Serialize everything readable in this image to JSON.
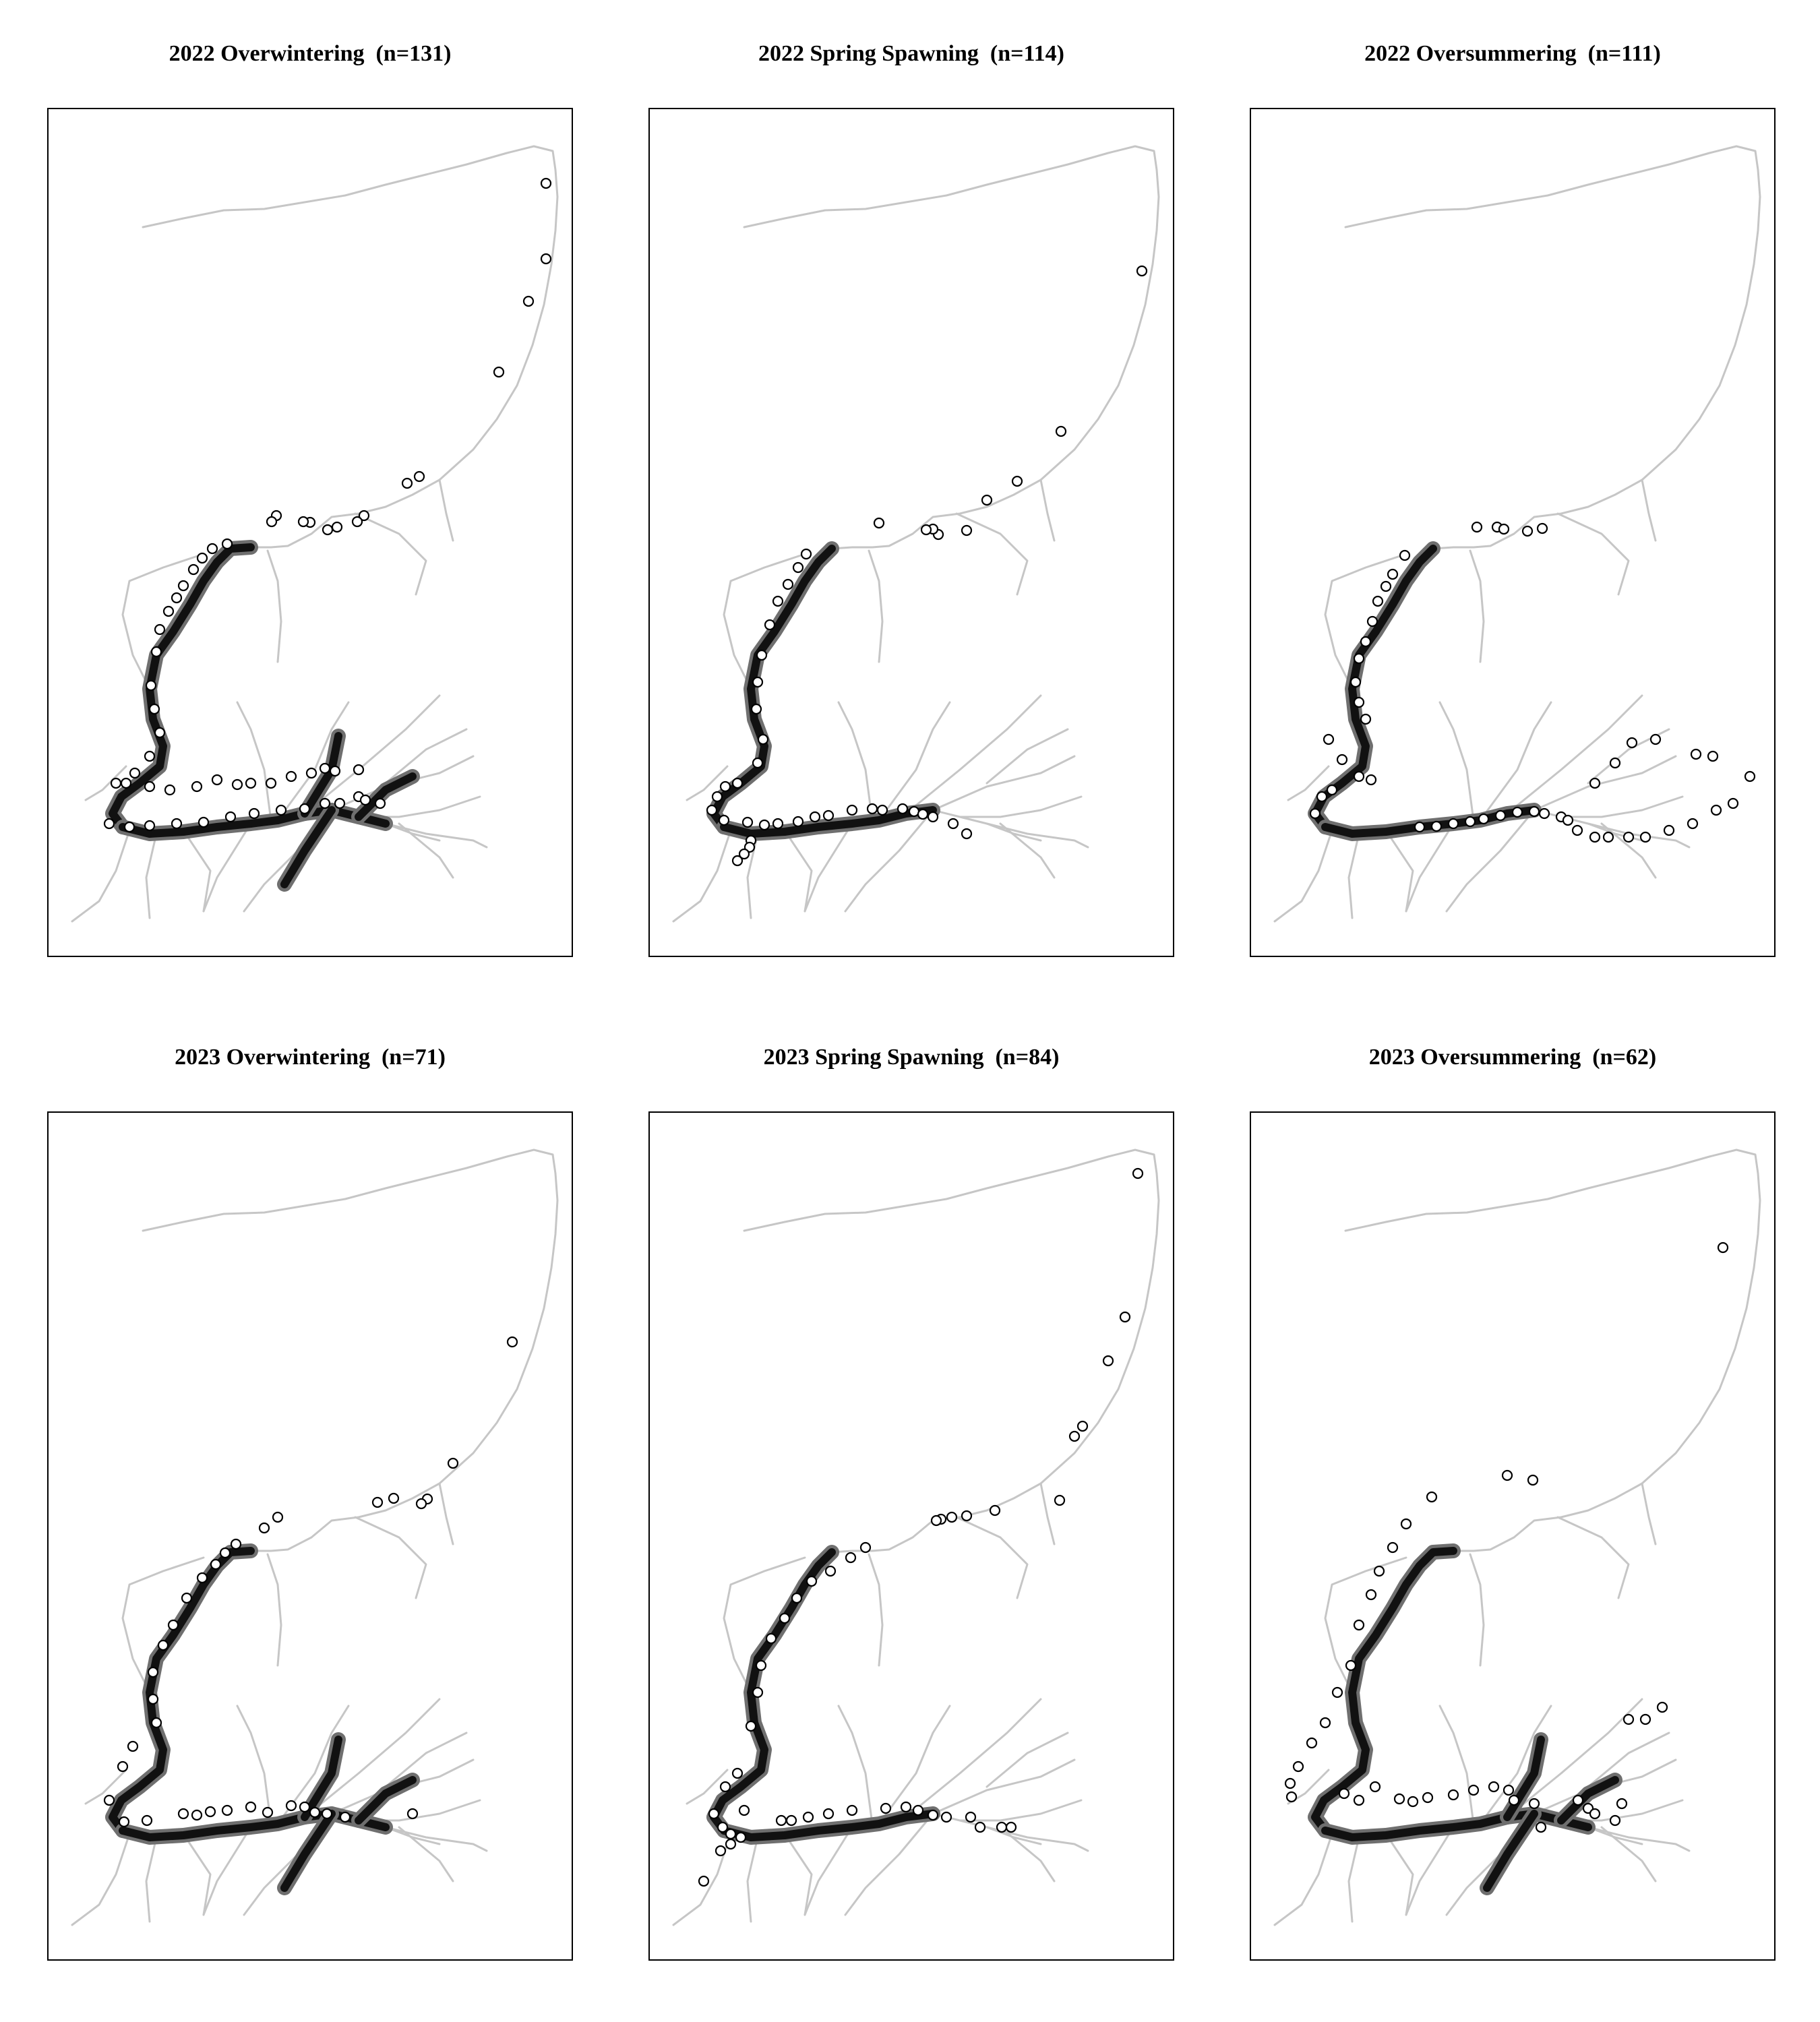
{
  "figure": {
    "panels": [
      {
        "title": "2022 Overwintering  (n=131)",
        "density": "high"
      },
      {
        "title": "2022 Spring Spawning  (n=114)",
        "density": "medium"
      },
      {
        "title": "2022 Oversummering  (n=111)",
        "density": "medium"
      },
      {
        "title": "2023 Overwintering  (n=71)",
        "density": "high"
      },
      {
        "title": "2023 Spring Spawning  (n=84)",
        "density": "medium"
      },
      {
        "title": "2023 Oversummering  (n=62)",
        "density": "high"
      }
    ],
    "colors": {
      "river_light": "#c6c6c6",
      "river_dark": "#111111",
      "river_mid": "#6f6f6f",
      "marker_fill": "#ffffff",
      "marker_stroke": "#000000"
    }
  }
}
